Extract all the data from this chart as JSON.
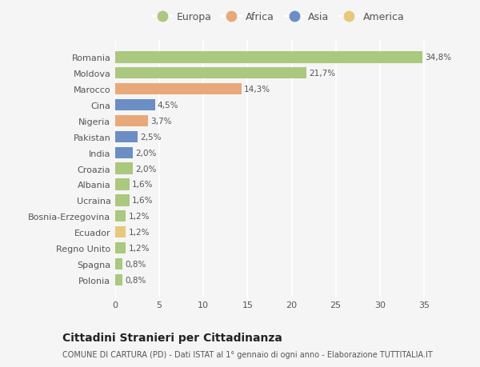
{
  "countries": [
    "Romania",
    "Moldova",
    "Marocco",
    "Cina",
    "Nigeria",
    "Pakistan",
    "India",
    "Croazia",
    "Albania",
    "Ucraina",
    "Bosnia-Erzegovina",
    "Ecuador",
    "Regno Unito",
    "Spagna",
    "Polonia"
  ],
  "values": [
    34.8,
    21.7,
    14.3,
    4.5,
    3.7,
    2.5,
    2.0,
    2.0,
    1.6,
    1.6,
    1.2,
    1.2,
    1.2,
    0.8,
    0.8
  ],
  "labels": [
    "34,8%",
    "21,7%",
    "14,3%",
    "4,5%",
    "3,7%",
    "2,5%",
    "2,0%",
    "2,0%",
    "1,6%",
    "1,6%",
    "1,2%",
    "1,2%",
    "1,2%",
    "0,8%",
    "0,8%"
  ],
  "continents": [
    "Europa",
    "Europa",
    "Africa",
    "Asia",
    "Africa",
    "Asia",
    "Asia",
    "Europa",
    "Europa",
    "Europa",
    "Europa",
    "America",
    "Europa",
    "Europa",
    "Europa"
  ],
  "colors": {
    "Europa": "#aac87e",
    "Africa": "#e8a97a",
    "Asia": "#6b8ec4",
    "America": "#e8c87a"
  },
  "legend_order": [
    "Europa",
    "Africa",
    "Asia",
    "America"
  ],
  "title": "Cittadini Stranieri per Cittadinanza",
  "subtitle": "COMUNE DI CARTURA (PD) - Dati ISTAT al 1° gennaio di ogni anno - Elaborazione TUTTITALIA.IT",
  "background_color": "#f5f5f5",
  "plot_bg_color": "#f5f5f5",
  "grid_color": "#ffffff",
  "xlim": [
    0,
    37
  ],
  "xticks": [
    0,
    5,
    10,
    15,
    20,
    25,
    30,
    35
  ]
}
